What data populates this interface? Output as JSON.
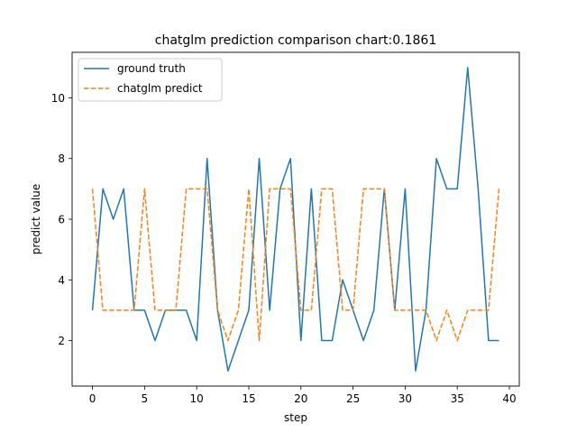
{
  "chart_data": {
    "type": "line",
    "title": "chatglm prediction comparison chart:0.1861",
    "xlabel": "step",
    "ylabel": "predict value",
    "xlim": [
      -1.95,
      40.95
    ],
    "ylim": [
      0.5,
      11.5
    ],
    "xticks": [
      0,
      5,
      10,
      15,
      20,
      25,
      30,
      35,
      40
    ],
    "yticks": [
      2,
      4,
      6,
      8,
      10
    ],
    "grid": false,
    "legend_position": "top-left",
    "x": [
      0,
      1,
      2,
      3,
      4,
      5,
      6,
      7,
      8,
      9,
      10,
      11,
      12,
      13,
      14,
      15,
      16,
      17,
      18,
      19,
      20,
      21,
      22,
      23,
      24,
      25,
      26,
      27,
      28,
      29,
      30,
      31,
      32,
      33,
      34,
      35,
      36,
      37,
      38,
      39
    ],
    "series": [
      {
        "name": "ground truth",
        "color": "#1f77b4",
        "style": "solid",
        "values": [
          3,
          7,
          6,
          7,
          3,
          3,
          2,
          3,
          3,
          3,
          2,
          8,
          3,
          1,
          2,
          3,
          8,
          3,
          7,
          8,
          2,
          7,
          2,
          2,
          4,
          3,
          2,
          3,
          7,
          3,
          7,
          1,
          3,
          8,
          7,
          7,
          11,
          7,
          2,
          2
        ]
      },
      {
        "name": "chatglm predict",
        "color": "#ff7f0e",
        "style": "dashed",
        "values": [
          7,
          3,
          3,
          3,
          3,
          7,
          3,
          3,
          3,
          7,
          7,
          7,
          3,
          2,
          3,
          7,
          2,
          7,
          7,
          7,
          3,
          3,
          7,
          7,
          3,
          3,
          7,
          7,
          7,
          3,
          3,
          3,
          3,
          2,
          3,
          2,
          3,
          3,
          3,
          7
        ]
      }
    ]
  }
}
